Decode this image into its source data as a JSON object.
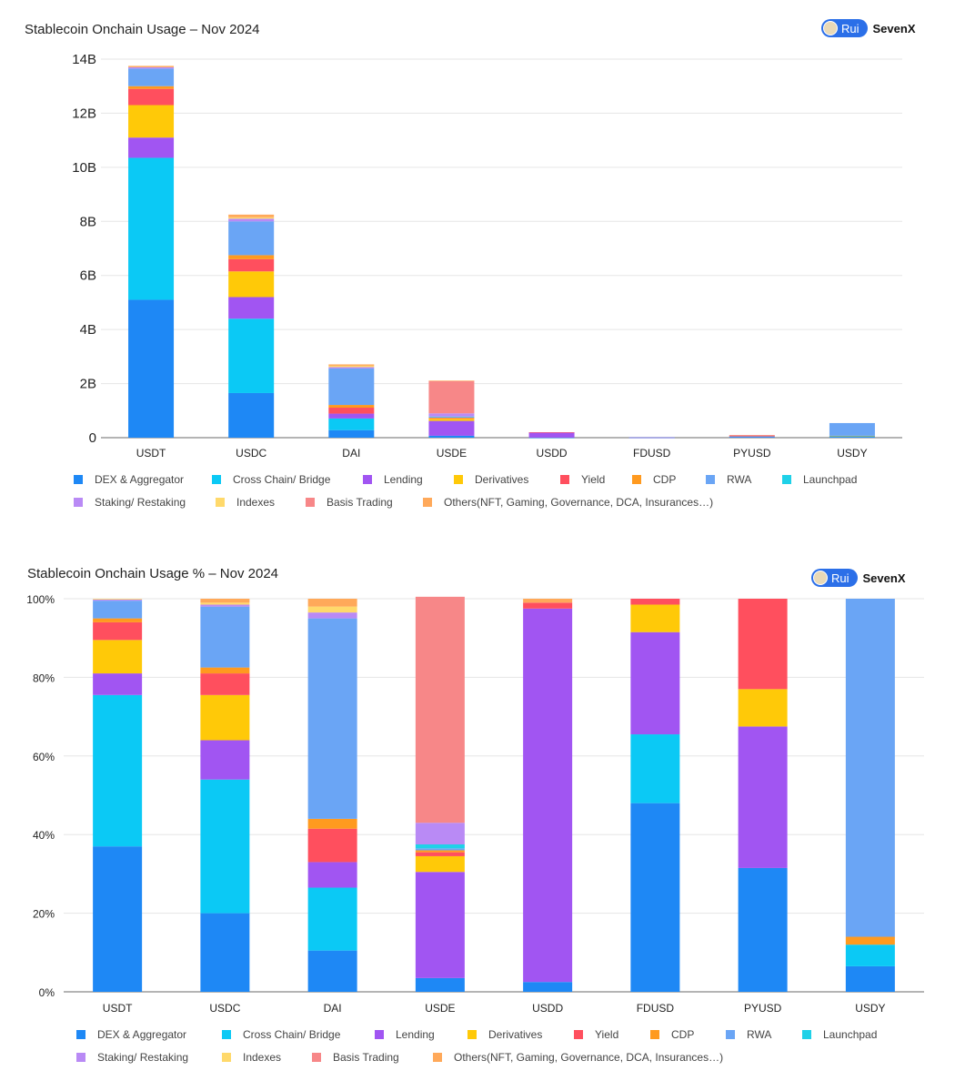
{
  "brand": {
    "pill_label": "Rui",
    "name": "SevenX"
  },
  "legend_items": [
    {
      "name": "DEX & Aggregator",
      "color": "#1e88f5"
    },
    {
      "name": "Cross Chain/ Bridge",
      "color": "#0bc9f5"
    },
    {
      "name": "Lending",
      "color": "#a155f2"
    },
    {
      "name": "Derivatives",
      "color": "#ffc908"
    },
    {
      "name": "Yield",
      "color": "#ff4f5e"
    },
    {
      "name": "CDP",
      "color": "#ff9a1f"
    },
    {
      "name": "RWA",
      "color": "#6aa5f5"
    },
    {
      "name": "Launchpad",
      "color": "#1fd1e8"
    },
    {
      "name": "Staking/ Restaking",
      "color": "#b98af5"
    },
    {
      "name": "Indexes",
      "color": "#ffd96b"
    },
    {
      "name": "Basis Trading",
      "color": "#f78788"
    },
    {
      "name": "Others(NFT, Gaming, Governance, DCA, Insurances…)",
      "color": "#ffa95a"
    }
  ],
  "chart_data": [
    {
      "type": "bar",
      "stacked": true,
      "title": "Stablecoin Onchain Usage – Nov 2024",
      "categories": [
        "USDT",
        "USDC",
        "DAI",
        "USDE",
        "USDD",
        "FDUSD",
        "PYUSD",
        "USDY"
      ],
      "y_unit": "B",
      "ylim": [
        0,
        14
      ],
      "yticks": [
        0,
        2,
        4,
        6,
        8,
        10,
        12,
        14
      ],
      "ytick_labels": [
        "0",
        "2B",
        "4B",
        "6B",
        "8B",
        "10B",
        "12B",
        "14B"
      ],
      "grid": true,
      "legend_position": "bottom",
      "series": [
        {
          "name": "DEX & Aggregator",
          "values": [
            5.1,
            1.65,
            0.28,
            0.07,
            0.005,
            0.004,
            0.03,
            0.03
          ]
        },
        {
          "name": "Cross Chain/ Bridge",
          "values": [
            5.25,
            2.75,
            0.43,
            0.0,
            0.0,
            0.002,
            0.0,
            0.03
          ]
        },
        {
          "name": "Lending",
          "values": [
            0.75,
            0.8,
            0.18,
            0.55,
            0.19,
            0.003,
            0.035,
            0.0
          ]
        },
        {
          "name": "Derivatives",
          "values": [
            1.2,
            0.95,
            0.0,
            0.08,
            0.0,
            0.0,
            0.01,
            0.0
          ]
        },
        {
          "name": "Yield",
          "values": [
            0.6,
            0.45,
            0.22,
            0.02,
            0.005,
            0.0,
            0.02,
            0.0
          ]
        },
        {
          "name": "CDP",
          "values": [
            0.1,
            0.15,
            0.1,
            0.02,
            0.0,
            0.0,
            0.0,
            0.01
          ]
        },
        {
          "name": "RWA",
          "values": [
            0.65,
            1.25,
            1.35,
            0.02,
            0.0,
            0.0,
            0.0,
            0.47
          ]
        },
        {
          "name": "Launchpad",
          "values": [
            0.0,
            0.0,
            0.0,
            0.02,
            0.0,
            0.0,
            0.0,
            0.0
          ]
        },
        {
          "name": "Staking/ Restaking",
          "values": [
            0.05,
            0.1,
            0.05,
            0.12,
            0.0,
            0.0,
            0.0,
            0.0
          ]
        },
        {
          "name": "Indexes",
          "values": [
            0.0,
            0.05,
            0.05,
            0.0,
            0.0,
            0.0,
            0.0,
            0.0
          ]
        },
        {
          "name": "Basis Trading",
          "values": [
            0.0,
            0.0,
            0.0,
            1.2,
            0.0,
            0.0,
            0.0,
            0.0
          ]
        },
        {
          "name": "Others(NFT, Gaming, Governance, DCA, Insurances…)",
          "values": [
            0.05,
            0.1,
            0.05,
            0.01,
            0.0,
            0.0,
            0.0,
            0.0
          ]
        }
      ]
    },
    {
      "type": "bar",
      "stacked": true,
      "title": "Stablecoin Onchain Usage % – Nov 2024",
      "categories": [
        "USDT",
        "USDC",
        "DAI",
        "USDE",
        "USDD",
        "FDUSD",
        "PYUSD",
        "USDY"
      ],
      "y_unit": "%",
      "ylim": [
        0,
        100
      ],
      "yticks": [
        0,
        20,
        40,
        60,
        80,
        100
      ],
      "ytick_labels": [
        "0%",
        "20%",
        "40%",
        "60%",
        "80%",
        "100%"
      ],
      "grid": true,
      "legend_position": "bottom",
      "series": [
        {
          "name": "DEX & Aggregator",
          "values": [
            37,
            20,
            10.5,
            3.5,
            2.5,
            48,
            31.5,
            6.5
          ]
        },
        {
          "name": "Cross Chain/ Bridge",
          "values": [
            38.5,
            34,
            16,
            0,
            0,
            17.5,
            0,
            5.5
          ]
        },
        {
          "name": "Lending",
          "values": [
            5.5,
            10,
            6.5,
            27,
            95,
            26,
            36,
            0
          ]
        },
        {
          "name": "Derivatives",
          "values": [
            8.5,
            11.5,
            0,
            4,
            0,
            7,
            9.5,
            0
          ]
        },
        {
          "name": "Yield",
          "values": [
            4.5,
            5.5,
            8.5,
            1,
            1.5,
            1.5,
            23,
            0
          ]
        },
        {
          "name": "CDP",
          "values": [
            1,
            1.5,
            2.5,
            0.5,
            0,
            0,
            0,
            2
          ]
        },
        {
          "name": "RWA",
          "values": [
            4.5,
            15.5,
            51,
            0.5,
            0,
            0,
            0,
            86
          ]
        },
        {
          "name": "Launchpad",
          "values": [
            0,
            0,
            0,
            1,
            0,
            0,
            0,
            0
          ]
        },
        {
          "name": "Staking/ Restaking",
          "values": [
            0.3,
            0.5,
            1.5,
            5.5,
            0,
            0,
            0,
            0
          ]
        },
        {
          "name": "Indexes",
          "values": [
            0.2,
            0.5,
            1.5,
            0,
            0,
            0,
            0,
            0
          ]
        },
        {
          "name": "Basis Trading",
          "values": [
            0,
            0,
            0,
            57.5,
            0,
            0,
            0,
            0
          ]
        },
        {
          "name": "Others(NFT, Gaming, Governance, DCA, Insurances…)",
          "values": [
            0,
            1,
            2,
            0,
            1,
            0,
            0,
            0
          ]
        }
      ]
    }
  ]
}
